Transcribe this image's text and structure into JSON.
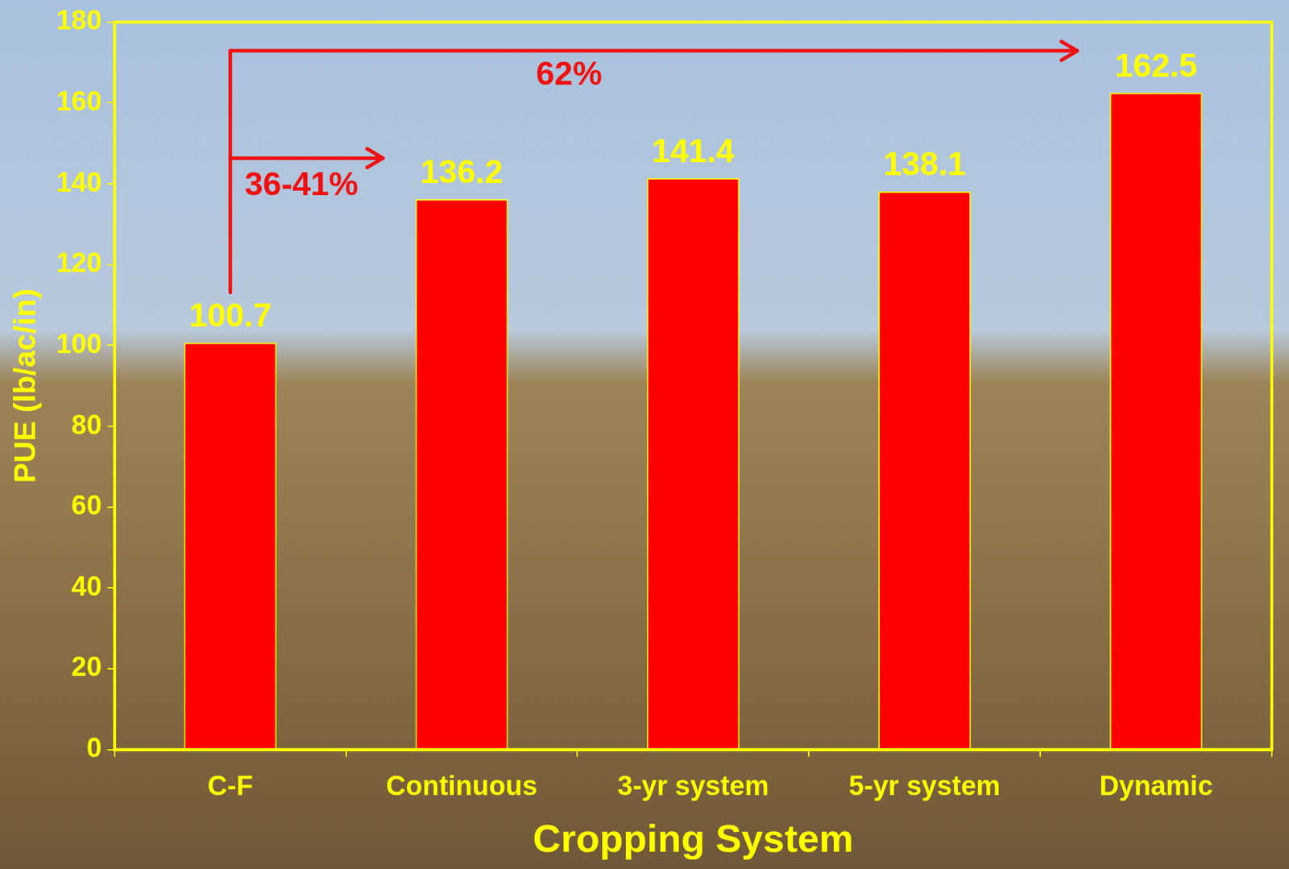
{
  "chart_data": {
    "type": "bar",
    "x_label": "Cropping System",
    "y_label": "PUE (lb/ac/in)",
    "categories": [
      "C-F",
      "Continuous",
      "3-yr system",
      "5-yr system",
      "Dynamic"
    ],
    "values": [
      100.7,
      136.2,
      141.4,
      138.1,
      162.5
    ],
    "color": "#ff0000",
    "ylim": [
      0,
      180
    ],
    "yticks": [
      0,
      20,
      40,
      60,
      80,
      100,
      120,
      140,
      160,
      180
    ],
    "grid": false,
    "data_labels": true,
    "annotations": [
      {
        "text": "62%",
        "from": "C-F",
        "to": "Dynamic"
      },
      {
        "text": "36-41%",
        "from": "C-F",
        "to": "Continuous"
      }
    ]
  }
}
